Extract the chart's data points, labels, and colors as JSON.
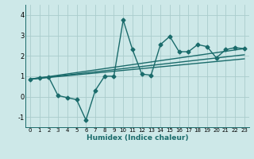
{
  "xlabel": "Humidex (Indice chaleur)",
  "ylabel": "",
  "background_color": "#cde8e8",
  "grid_color": "#aacccc",
  "line_color": "#1a6b6b",
  "xlim": [
    -0.5,
    23.5
  ],
  "ylim": [
    -1.5,
    4.5
  ],
  "xticks": [
    0,
    1,
    2,
    3,
    4,
    5,
    6,
    7,
    8,
    9,
    10,
    11,
    12,
    13,
    14,
    15,
    16,
    17,
    18,
    19,
    20,
    21,
    22,
    23
  ],
  "yticks": [
    -1,
    0,
    1,
    2,
    3,
    4
  ],
  "series": [
    {
      "x": [
        0,
        1,
        2,
        3,
        4,
        5,
        6,
        7,
        8,
        9,
        10,
        11,
        12,
        13,
        14,
        15,
        16,
        17,
        18,
        19,
        20,
        21,
        22,
        23
      ],
      "y": [
        0.85,
        0.93,
        0.95,
        0.05,
        -0.05,
        -0.15,
        -1.15,
        0.3,
        1.0,
        1.0,
        3.75,
        2.3,
        1.1,
        1.05,
        2.55,
        2.95,
        2.2,
        2.2,
        2.55,
        2.45,
        1.9,
        2.3,
        2.4,
        2.35
      ],
      "marker": "D",
      "markersize": 2.5,
      "linewidth": 1.0
    },
    {
      "x": [
        0,
        23
      ],
      "y": [
        0.85,
        2.35
      ],
      "marker": null,
      "markersize": 0,
      "linewidth": 1.0
    },
    {
      "x": [
        0,
        23
      ],
      "y": [
        0.85,
        2.05
      ],
      "marker": null,
      "markersize": 0,
      "linewidth": 1.0
    },
    {
      "x": [
        0,
        23
      ],
      "y": [
        0.85,
        1.85
      ],
      "marker": null,
      "markersize": 0,
      "linewidth": 1.0
    }
  ]
}
